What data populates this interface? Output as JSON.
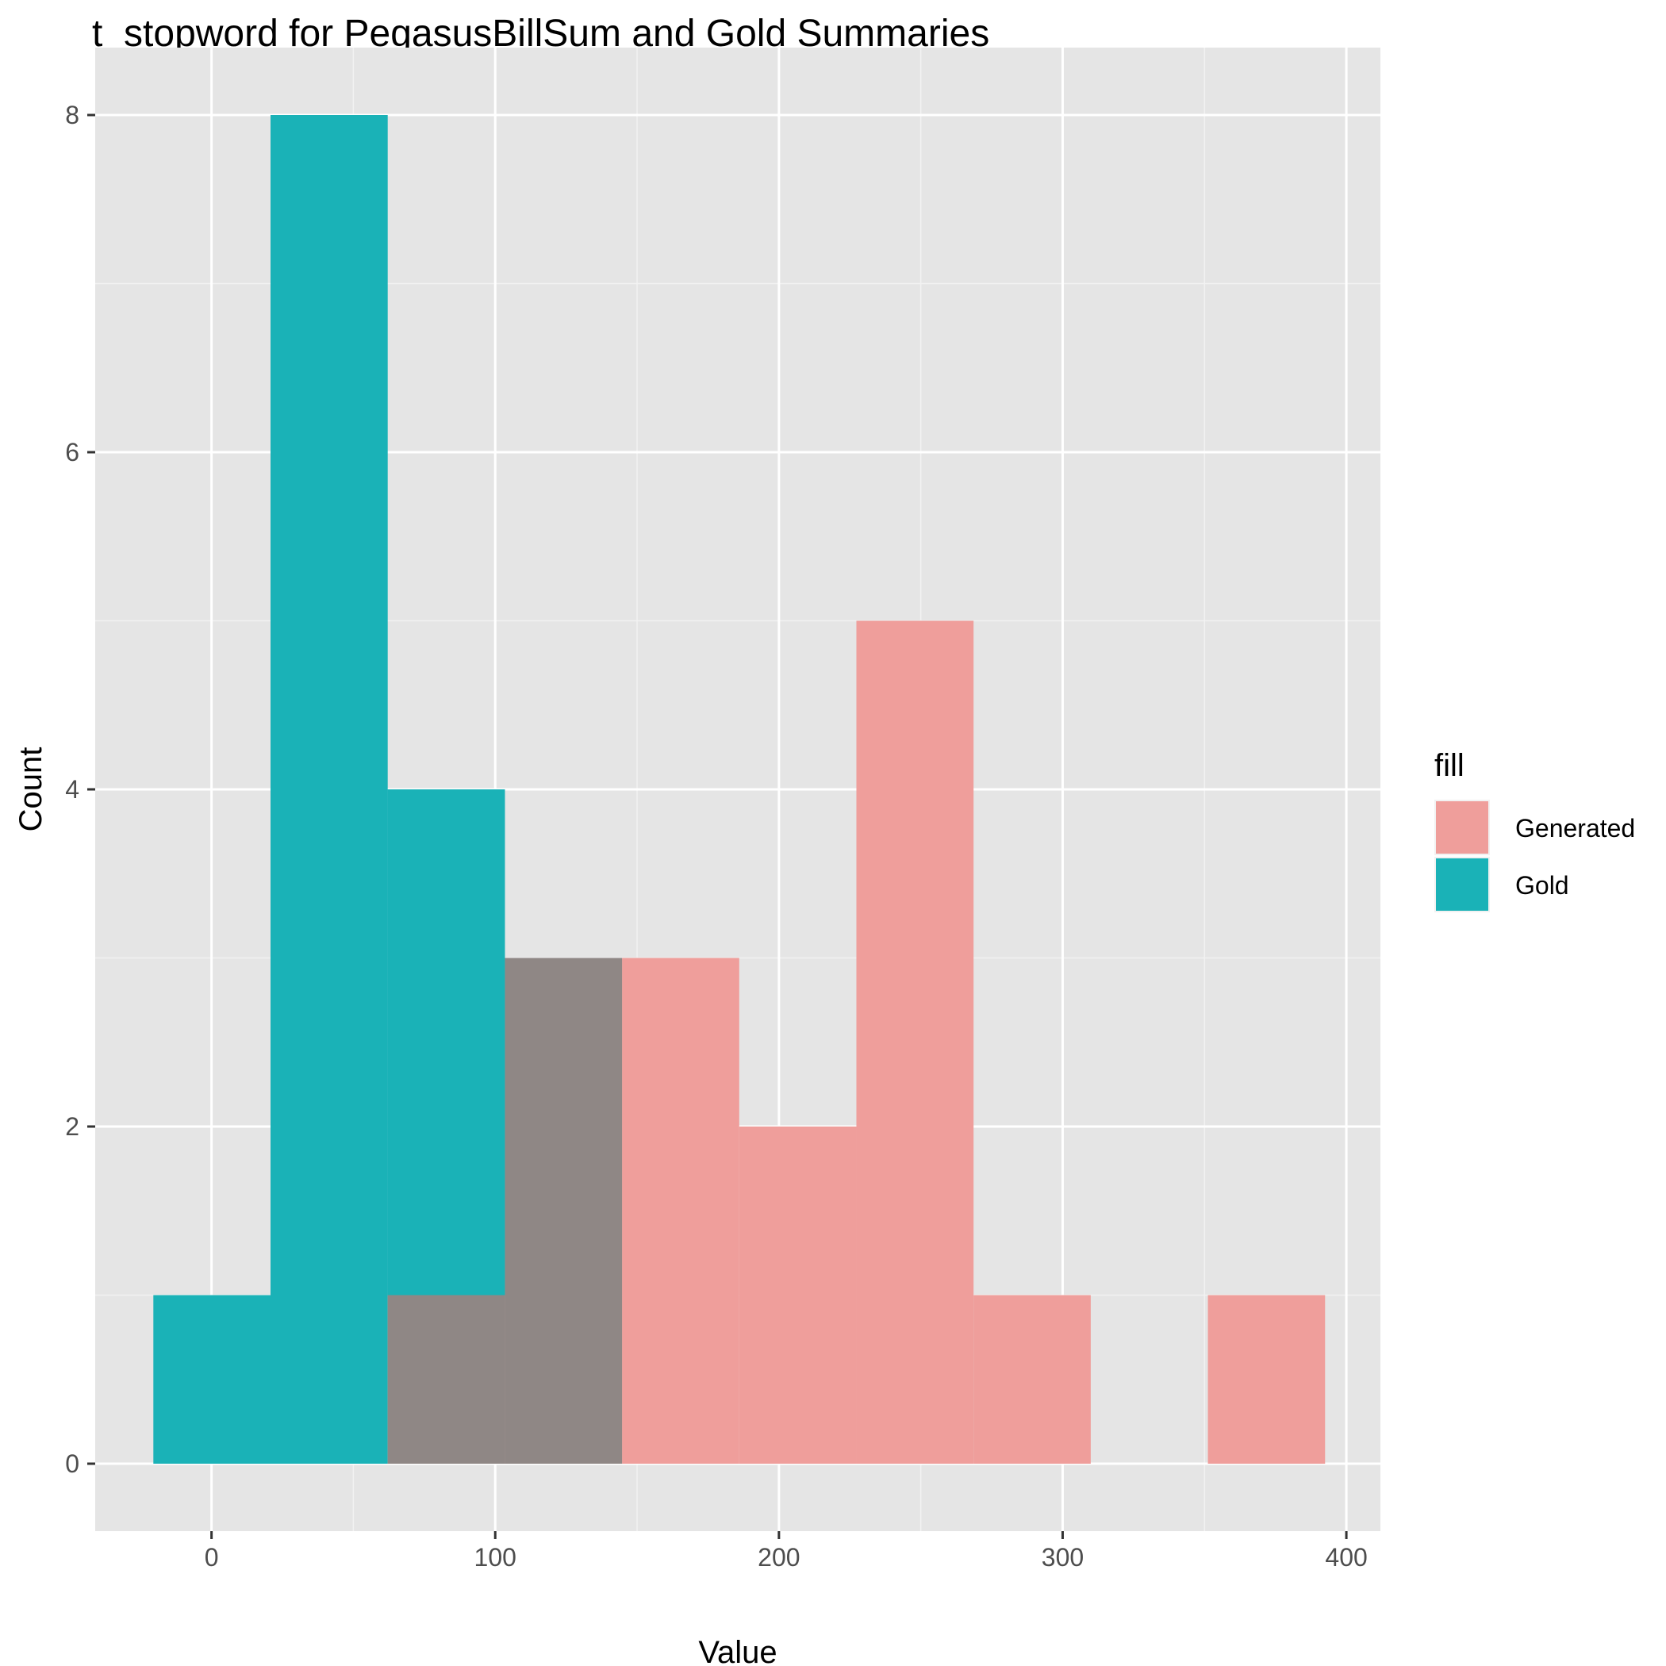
{
  "chart_data": {
    "type": "histogram",
    "title": "t_stopword for PegasusBillSum and Gold Summaries",
    "xlabel": "Value",
    "ylabel": "Count",
    "xlim": [
      -41,
      412
    ],
    "ylim": [
      -0.4,
      8.4
    ],
    "x_ticks": [
      0,
      100,
      200,
      300,
      400
    ],
    "y_ticks": [
      0,
      2,
      4,
      6,
      8
    ],
    "x_minor": [
      50,
      150,
      250,
      350
    ],
    "y_minor": [
      1,
      3,
      5,
      7
    ],
    "grid": true,
    "bin_width": 41.3,
    "overlap_color": "#8f8785",
    "legend": {
      "title": "fill",
      "position": "right"
    },
    "series": [
      {
        "name": "Generated",
        "color": "#ef9e9b",
        "bins": [
          {
            "x0": 62.1,
            "x1": 103.4,
            "count": 1
          },
          {
            "x0": 103.4,
            "x1": 144.7,
            "count": 3
          },
          {
            "x0": 144.7,
            "x1": 186.0,
            "count": 3
          },
          {
            "x0": 186.0,
            "x1": 227.3,
            "count": 2
          },
          {
            "x0": 227.3,
            "x1": 268.6,
            "count": 5
          },
          {
            "x0": 268.6,
            "x1": 309.9,
            "count": 1
          },
          {
            "x0": 309.9,
            "x1": 351.2,
            "count": 0
          },
          {
            "x0": 351.2,
            "x1": 392.5,
            "count": 1
          }
        ]
      },
      {
        "name": "Gold",
        "color": "#1ab2b7",
        "bins": [
          {
            "x0": -20.5,
            "x1": 20.8,
            "count": 1
          },
          {
            "x0": 20.8,
            "x1": 62.1,
            "count": 8
          },
          {
            "x0": 62.1,
            "x1": 103.4,
            "count": 4
          },
          {
            "x0": 103.4,
            "x1": 144.7,
            "count": 3
          }
        ]
      }
    ]
  }
}
